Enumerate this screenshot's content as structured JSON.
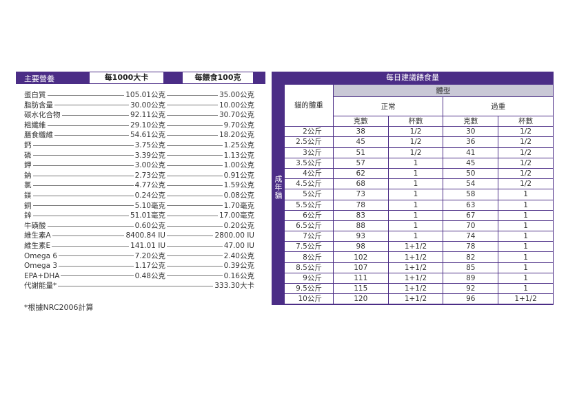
{
  "nutrition": {
    "header": {
      "label": "主要營養",
      "col1": "每1000大卡",
      "col2": "每餵食100克"
    },
    "rows": [
      {
        "name": "蛋白質",
        "per1000kcal": "105.01公克",
        "per100g": "35.00公克"
      },
      {
        "name": "脂肪含量",
        "per1000kcal": "30.00公克",
        "per100g": "10.00公克"
      },
      {
        "name": "碳水化合物",
        "per1000kcal": "92.11公克",
        "per100g": "30.70公克"
      },
      {
        "name": "粗纖維",
        "per1000kcal": "29.10公克",
        "per100g": "9.70公克"
      },
      {
        "name": "膳食纖維",
        "per1000kcal": "54.61公克",
        "per100g": "18.20公克"
      },
      {
        "name": "鈣",
        "per1000kcal": "3.75公克",
        "per100g": "1.25公克"
      },
      {
        "name": "磷",
        "per1000kcal": "3.39公克",
        "per100g": "1.13公克"
      },
      {
        "name": "鉀",
        "per1000kcal": "3.00公克",
        "per100g": "1.00公克"
      },
      {
        "name": "鈉",
        "per1000kcal": "2.73公克",
        "per100g": "0.91公克"
      },
      {
        "name": "氯",
        "per1000kcal": "4.77公克",
        "per100g": "1.59公克"
      },
      {
        "name": "鎂",
        "per1000kcal": "0.24公克",
        "per100g": "0.08公克"
      },
      {
        "name": "銅",
        "per1000kcal": "5.10毫克",
        "per100g": "1.70毫克"
      },
      {
        "name": "鋅",
        "per1000kcal": "51.01毫克",
        "per100g": "17.00毫克"
      },
      {
        "name": "牛磺酸",
        "per1000kcal": "0.60公克",
        "per100g": "0.20公克"
      },
      {
        "name": "維生素A",
        "per1000kcal": "8400.84 IU",
        "per100g": "2800.00 IU"
      },
      {
        "name": "維生素E",
        "per1000kcal": "141.01 IU",
        "per100g": "47.00 IU"
      },
      {
        "name": "Omega 6",
        "per1000kcal": "7.20公克",
        "per100g": "2.40公克"
      },
      {
        "name": "Omega 3",
        "per1000kcal": "1.17公克",
        "per100g": "0.39公克"
      },
      {
        "name": "EPA+DHA",
        "per1000kcal": "0.48公克",
        "per100g": "0.16公克"
      },
      {
        "name": "代謝能量*",
        "per1000kcal": "",
        "per100g": "333.30大卡"
      }
    ],
    "footnote": "*根據NRC2006計算"
  },
  "feeding": {
    "title": "每日建議餵食量",
    "side_label": "成年貓",
    "weight_header": "貓的體重",
    "body_type": "體型",
    "normal": "正常",
    "overweight": "過重",
    "grams": "克數",
    "cups": "杯數",
    "rows": [
      [
        "2公斤",
        "38",
        "1/2",
        "30",
        "1/2"
      ],
      [
        "2.5公斤",
        "45",
        "1/2",
        "36",
        "1/2"
      ],
      [
        "3公斤",
        "51",
        "1/2",
        "41",
        "1/2"
      ],
      [
        "3.5公斤",
        "57",
        "1",
        "45",
        "1/2"
      ],
      [
        "4公斤",
        "62",
        "1",
        "50",
        "1/2"
      ],
      [
        "4.5公斤",
        "68",
        "1",
        "54",
        "1/2"
      ],
      [
        "5公斤",
        "73",
        "1",
        "58",
        "1"
      ],
      [
        "5.5公斤",
        "78",
        "1",
        "63",
        "1"
      ],
      [
        "6公斤",
        "83",
        "1",
        "67",
        "1"
      ],
      [
        "6.5公斤",
        "88",
        "1",
        "70",
        "1"
      ],
      [
        "7公斤",
        "93",
        "1",
        "74",
        "1"
      ],
      [
        "7.5公斤",
        "98",
        "1+1/2",
        "78",
        "1"
      ],
      [
        "8公斤",
        "102",
        "1+1/2",
        "82",
        "1"
      ],
      [
        "8.5公斤",
        "107",
        "1+1/2",
        "85",
        "1"
      ],
      [
        "9公斤",
        "111",
        "1+1/2",
        "89",
        "1"
      ],
      [
        "9.5公斤",
        "115",
        "1+1/2",
        "92",
        "1"
      ],
      [
        "10公斤",
        "120",
        "1+1/2",
        "96",
        "1+1/2"
      ]
    ]
  }
}
